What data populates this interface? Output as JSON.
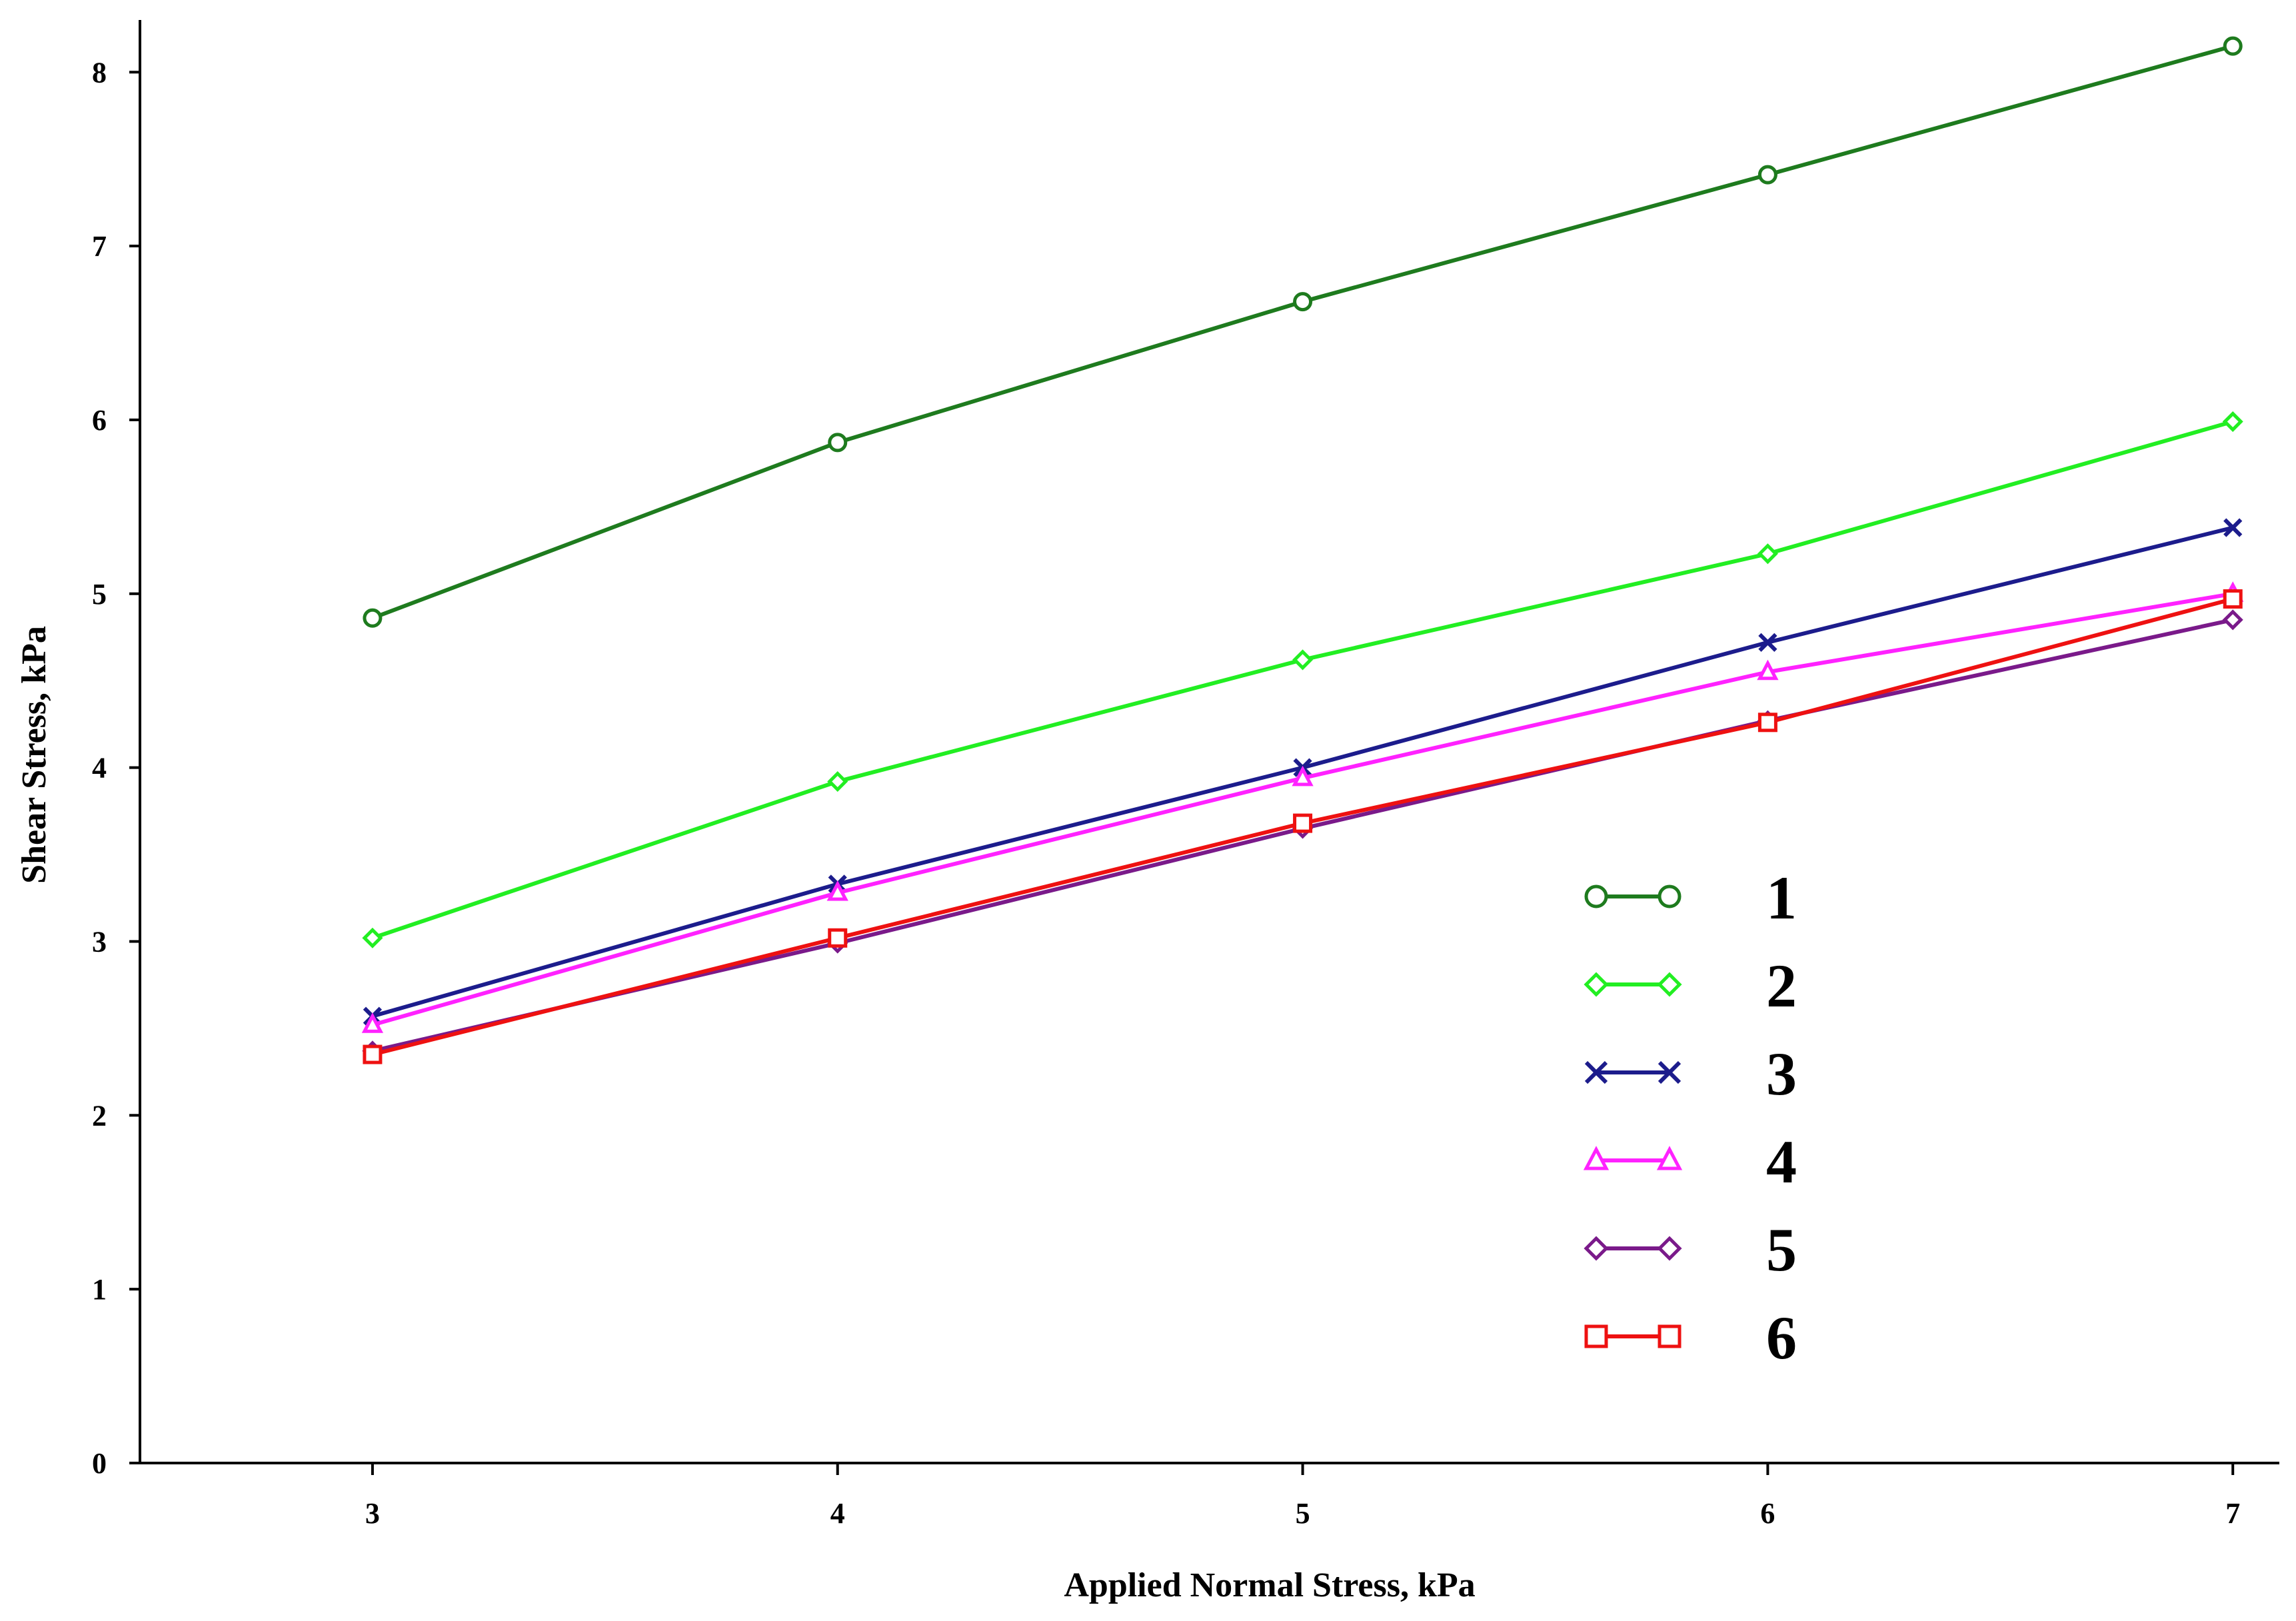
{
  "chart_data": {
    "type": "line",
    "title": "",
    "xlabel": "Applied Normal Stress, kPa",
    "ylabel": "Shear Stress, kPa",
    "x": [
      3,
      4,
      5,
      6,
      7
    ],
    "xlim": [
      2.5,
      7.1
    ],
    "ylim": [
      0,
      8.3
    ],
    "xticks": [
      "3",
      "4",
      "5",
      "6",
      "7"
    ],
    "yticks": [
      "0",
      "1",
      "2",
      "3",
      "4",
      "5",
      "6",
      "7",
      "8"
    ],
    "grid": false,
    "legend_position": "bottom-right",
    "series": [
      {
        "name": "1",
        "color": "#1e7b1e",
        "marker": "circle",
        "values": [
          4.86,
          5.87,
          6.68,
          7.41,
          8.15
        ]
      },
      {
        "name": "2",
        "color": "#22ee22",
        "marker": "diamond",
        "values": [
          3.02,
          3.92,
          4.62,
          5.23,
          5.99
        ]
      },
      {
        "name": "3",
        "color": "#1c1c8c",
        "marker": "x",
        "values": [
          2.57,
          3.33,
          4.0,
          4.72,
          5.38
        ]
      },
      {
        "name": "4",
        "color": "#ff22ff",
        "marker": "triangle",
        "values": [
          2.52,
          3.28,
          3.94,
          4.55,
          5.0
        ]
      },
      {
        "name": "5",
        "color": "#7a1a8a",
        "marker": "diamond",
        "values": [
          2.37,
          2.99,
          3.65,
          4.27,
          4.85
        ]
      },
      {
        "name": "6",
        "color": "#ee1111",
        "marker": "square",
        "values": [
          2.35,
          3.02,
          3.68,
          4.26,
          4.97
        ]
      }
    ]
  }
}
